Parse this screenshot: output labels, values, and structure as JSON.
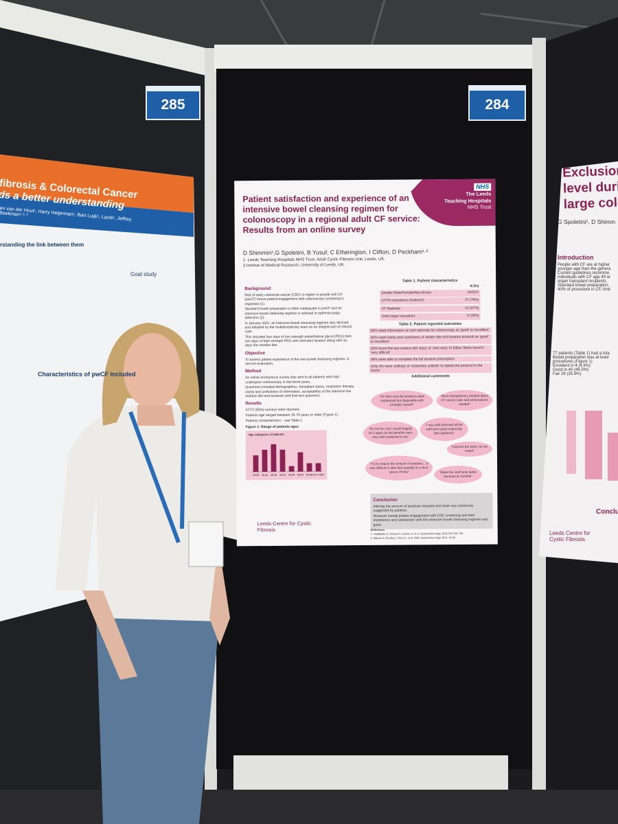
{
  "booths": {
    "left": "285",
    "right": "284"
  },
  "left_poster": {
    "title_line1": "fibrosis & Colorectal Cancer",
    "title_line2": "ds a better understanding",
    "authors": "en van der Hout¹, Harry Heijerman¹, Bart Luijk¹, Lacle¹, Jeffrey Beekman¹·²·⁴",
    "link": "rstanding the link between them",
    "goal": "Goal study",
    "characteristics": "Characteristics of pwCF included"
  },
  "main_poster": {
    "title": "Patient satisfaction and experience of an intensive bowel cleansing regimen for colonoscopy in a regional adult CF service: Results from an online survey",
    "logo": {
      "mark": "NHS",
      "line1": "The Leeds",
      "line2": "Teaching Hospitals",
      "line3": "NHS Trust"
    },
    "authors": "D Shimmin¹,G Spoletini, B Yusuf, C Etherington, I Clifton, D Peckham¹·²",
    "affiliations": [
      "1. Leeds Teaching Hospitals NHS Trust, Adult Cystic Fibrosis Unit, Leeds, UK.",
      "2.Institue of Medical Research, University of Leeds, UK."
    ],
    "background": {
      "heading": "Background",
      "bullets": [
        "Risk of early colorectal cancer (CRC) is higher in people with CF (pwCF) hence patient engagement with colonoscopy screening is important (1).",
        "Standard bowel preparation is often inadequate in pwCF and an intensive bowel cleansing regimen is advised to optimise polyp detection (2).",
        "In January 2021, an intensive bowel cleansing regimen was devised and adopted by the multidisciplinary team as an integral part of clinical care.",
        "This included four days of low strength polyethylene glycol (PEG) then two days of high strength PEG with stimulant laxative along with six days low residue diet."
      ]
    },
    "objective": {
      "heading": "Objective",
      "bullets": [
        "To assess patient experience of the new bowel cleansing regimen: A service evaluation."
      ]
    },
    "method": {
      "heading": "Method",
      "bullets": [
        "An online anonymous survey was sent to all patients who had undergone colonoscopy in last three years.",
        "Questions included demographics, transplant status, modulator therapy, clarity and usefulness of information, acceptability of the intensive low residue diet and laxatives and free text questions."
      ]
    },
    "results": {
      "heading": "Results",
      "bullets": [
        "47/72 (65%) surveys were returned.",
        "Patients age ranged between 35-70 years or older (Figure 1).",
        "Patients characteristics – see Table 1."
      ]
    },
    "figure": {
      "caption": "Figure 1: Range of patients ages",
      "title": "Age categories of patients",
      "categories": [
        "35-39",
        "40-44",
        "45-49",
        "50-54",
        "55-59",
        "60-64",
        "65-69",
        "70 or older"
      ],
      "values": [
        6,
        8,
        10,
        8,
        2,
        7,
        3,
        3
      ],
      "ylim": [
        0,
        12
      ],
      "color": "#8b2252"
    },
    "table1": {
      "caption": "Table 1. Patient characteristics",
      "header": "N (%)",
      "rows": [
        [
          "Gender Male/Female/Non-binary",
          "24/22/1"
        ],
        [
          "CFTR modulators (Kaftrio®)",
          "37 (79%)"
        ],
        [
          "CF Diabetes",
          "22 (47%)"
        ],
        [
          "Solid organ transplant",
          "9 (19%)"
        ]
      ]
    },
    "table2": {
      "caption": "Table 2. Patient reported outcomes",
      "rows": [
        "98% rated information on and rationale for colonoscopy as 'good' to 'excellent'",
        "92% rated clarity and usefulness of written diet and laxative protocol as 'good' to 'excellent'",
        "53% found the low residue diet 'easy' or 'very easy' to follow. None found it 'very difficult'",
        "96% were able to complete the full laxative prescription",
        "Only 4% were 'unlikely' or 'extremely unlikely' to repeat the protocol in the future"
      ]
    },
    "comments": {
      "heading": "Additional comments",
      "items": [
        "\"On their own the laxatives were unpleasant but disgusable with (orange) squash\"",
        "\"More transparency needed about CF cancer risks and observations needed\"",
        "\"It's not fun, but I would happily do it again as the benefits were very well explained to me\"",
        "\"I was well informed all the staff were great especially Dee (dietitian)\"",
        "\"Improve the taste, far too sweet\"",
        "\"Try to reduce the amount of laxatives... it was difficult to take that quantity in a short space of time\"",
        "\"Make the stuff taste better because its horrible\""
      ]
    },
    "conclusion": {
      "heading": "Conclusion",
      "bullets": [
        "Altering the amount of laxatives required and taste was commonly suggested by patients.",
        "However overall patient engagement with CRC screening and their experience and satisfaction with the intensive bowel cleansing regimen was good."
      ]
    },
    "references": {
      "heading": "References",
      "items": [
        "1. Hadjiliadis D, Khoruts A, Zauber A, et al. Gastroenterology 2018;154:736–745",
        "2. Matson A, Bunting J, Ricci K, et al. BMC Gastroenterology 2019; 19:48"
      ]
    },
    "footer": "Leeds Centre for Cystic Fibrosis"
  },
  "right_poster": {
    "title_lines": [
      "Exclusion",
      "level duri",
      "large colo"
    ],
    "authors": "G Spoletini¹, D Shimm",
    "intro": "Introduction",
    "bullets": [
      "People with CF are at higher",
      "younger age than the genera",
      "Current guidelines recomme",
      "individuals with CF age 40 or",
      "organ transplant recipients.",
      "Standard bowel preparation",
      "40% of procedure in CF, limit"
    ],
    "results": [
      "77 patients (Table 1) had a tota",
      "Bowel preparation was at least",
      "procedures (Figure 1)",
      "Excellent in 4 (4.9%)",
      "Good in 40 (49.3%)",
      "Fair 29 (35.9%)"
    ],
    "conclusion": "Conclu",
    "footer": "Leeds Centre for Cystic Fibrosis"
  }
}
